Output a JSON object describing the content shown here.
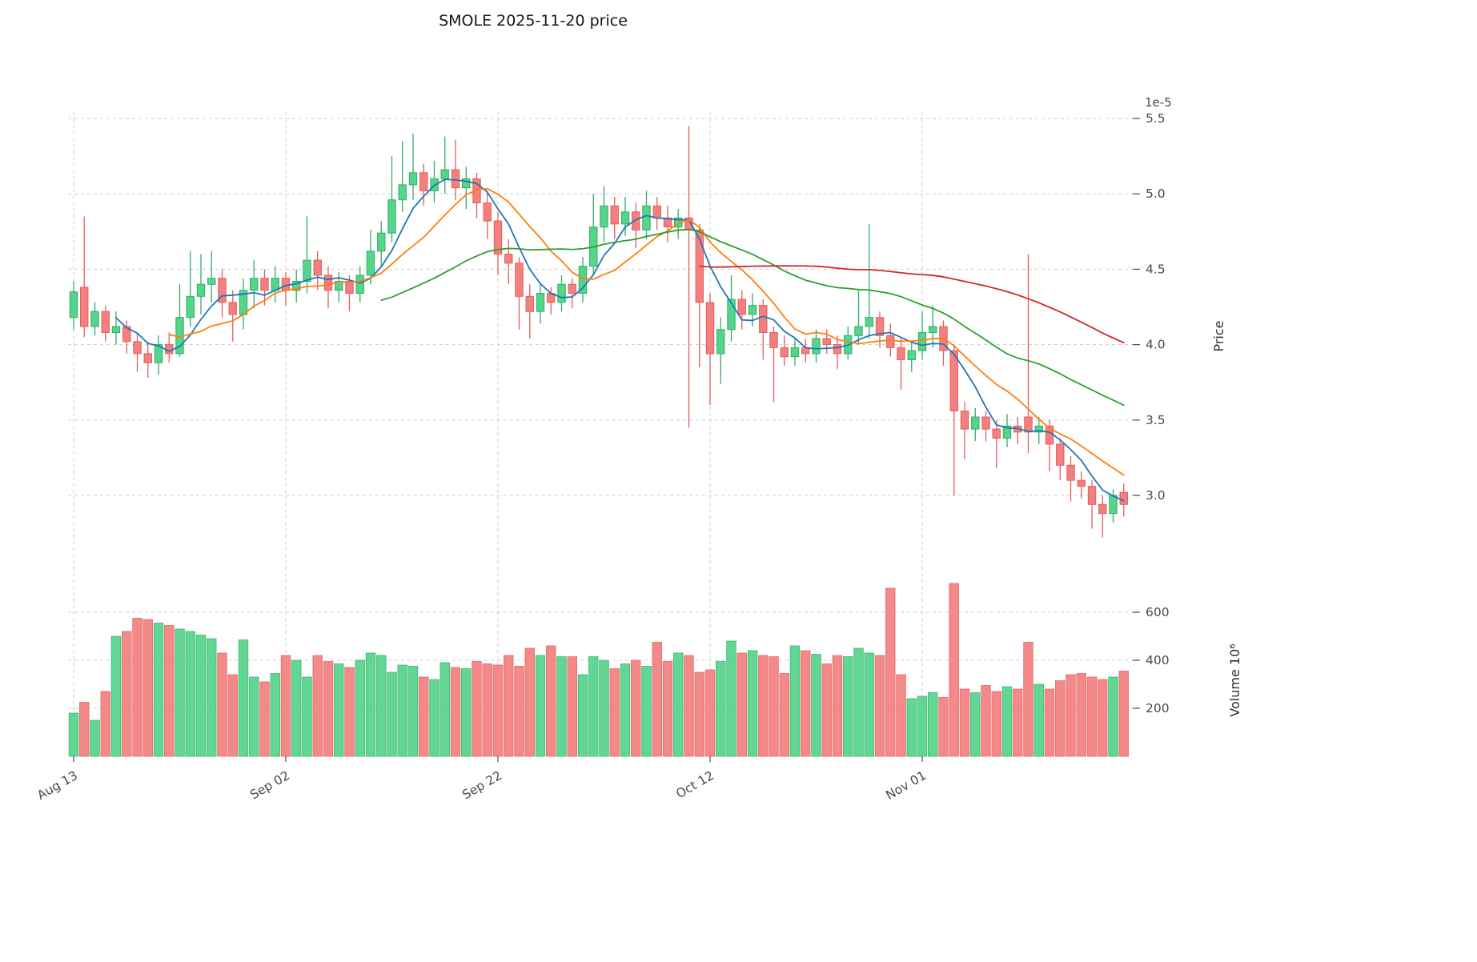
{
  "chart_data": {
    "type": "candlestick",
    "title": "SMOLE  2025-11-20  price",
    "grid": true,
    "legend_position": "none",
    "price_axis": {
      "label": "Price",
      "offset_label": "1e-5",
      "side": "right",
      "ticks": [
        3.0,
        3.5,
        4.0,
        4.5,
        5.0,
        5.5
      ],
      "ylim": [
        2.65,
        5.55
      ]
    },
    "volume_axis": {
      "label": "Volume  10⁶",
      "side": "right",
      "ticks": [
        200,
        400,
        600
      ],
      "ylim": [
        0,
        780
      ]
    },
    "x_ticks": [
      {
        "index": 0,
        "label": "Aug 13"
      },
      {
        "index": 20,
        "label": "Sep 02"
      },
      {
        "index": 40,
        "label": "Sep 22"
      },
      {
        "index": 60,
        "label": "Oct 12"
      },
      {
        "index": 80,
        "label": "Nov 01"
      }
    ],
    "moving_averages": [
      {
        "period": 5,
        "color": "#1f77b4"
      },
      {
        "period": 10,
        "color": "#ff7f0e"
      },
      {
        "period": 30,
        "color": "#2ca02c"
      },
      {
        "period": 60,
        "color": "#d62728"
      }
    ],
    "colors": {
      "up_fill": "#55d48c",
      "up_edge": "#2fae66",
      "down_fill": "#f3807f",
      "down_edge": "#e25d5e",
      "grid": "#cdcdcd"
    },
    "ohlcv_columns": [
      "open",
      "high",
      "low",
      "close",
      "volume_millions"
    ],
    "ohlcv": [
      [
        4.18,
        4.42,
        4.1,
        4.35,
        180
      ],
      [
        4.38,
        4.85,
        4.05,
        4.12,
        225
      ],
      [
        4.12,
        4.28,
        4.06,
        4.22,
        150
      ],
      [
        4.22,
        4.26,
        4.02,
        4.08,
        270
      ],
      [
        4.08,
        4.22,
        4.0,
        4.12,
        500
      ],
      [
        4.12,
        4.16,
        3.94,
        4.02,
        520
      ],
      [
        4.02,
        4.08,
        3.82,
        3.94,
        575
      ],
      [
        3.94,
        4.02,
        3.78,
        3.88,
        570
      ],
      [
        3.88,
        4.06,
        3.8,
        4.0,
        555
      ],
      [
        4.0,
        4.08,
        3.88,
        3.94,
        545
      ],
      [
        3.94,
        4.4,
        3.92,
        4.18,
        530
      ],
      [
        4.18,
        4.62,
        4.12,
        4.32,
        520
      ],
      [
        4.32,
        4.6,
        4.2,
        4.4,
        505
      ],
      [
        4.4,
        4.62,
        4.28,
        4.44,
        490
      ],
      [
        4.44,
        4.5,
        4.18,
        4.28,
        430
      ],
      [
        4.28,
        4.36,
        4.02,
        4.2,
        340
      ],
      [
        4.2,
        4.44,
        4.1,
        4.36,
        485
      ],
      [
        4.36,
        4.56,
        4.24,
        4.44,
        330
      ],
      [
        4.44,
        4.5,
        4.26,
        4.36,
        310
      ],
      [
        4.36,
        4.52,
        4.28,
        4.44,
        345
      ],
      [
        4.44,
        4.48,
        4.26,
        4.36,
        420
      ],
      [
        4.36,
        4.5,
        4.28,
        4.42,
        400
      ],
      [
        4.42,
        4.85,
        4.34,
        4.56,
        330
      ],
      [
        4.56,
        4.62,
        4.36,
        4.46,
        420
      ],
      [
        4.46,
        4.52,
        4.24,
        4.36,
        395
      ],
      [
        4.36,
        4.48,
        4.28,
        4.42,
        385
      ],
      [
        4.42,
        4.46,
        4.22,
        4.34,
        370
      ],
      [
        4.34,
        4.52,
        4.28,
        4.46,
        400
      ],
      [
        4.46,
        4.76,
        4.4,
        4.62,
        430
      ],
      [
        4.62,
        4.82,
        4.52,
        4.74,
        420
      ],
      [
        4.74,
        5.25,
        4.68,
        4.96,
        350
      ],
      [
        4.96,
        5.35,
        4.88,
        5.06,
        380
      ],
      [
        5.06,
        5.4,
        4.96,
        5.14,
        375
      ],
      [
        5.14,
        5.2,
        4.92,
        5.02,
        330
      ],
      [
        5.02,
        5.22,
        4.94,
        5.1,
        320
      ],
      [
        5.1,
        5.38,
        5.0,
        5.16,
        390
      ],
      [
        5.16,
        5.36,
        4.96,
        5.04,
        370
      ],
      [
        5.04,
        5.18,
        4.9,
        5.1,
        365
      ],
      [
        5.1,
        5.14,
        4.84,
        4.94,
        395
      ],
      [
        4.94,
        5.02,
        4.7,
        4.82,
        385
      ],
      [
        4.82,
        4.88,
        4.46,
        4.6,
        380
      ],
      [
        4.6,
        4.7,
        4.4,
        4.54,
        420
      ],
      [
        4.54,
        4.58,
        4.1,
        4.32,
        375
      ],
      [
        4.32,
        4.4,
        4.04,
        4.22,
        450
      ],
      [
        4.22,
        4.4,
        4.14,
        4.34,
        420
      ],
      [
        4.34,
        4.38,
        4.2,
        4.28,
        460
      ],
      [
        4.28,
        4.46,
        4.22,
        4.4,
        415
      ],
      [
        4.4,
        4.44,
        4.24,
        4.34,
        415
      ],
      [
        4.34,
        4.58,
        4.28,
        4.52,
        340
      ],
      [
        4.52,
        5.0,
        4.46,
        4.78,
        415
      ],
      [
        4.78,
        5.05,
        4.68,
        4.92,
        400
      ],
      [
        4.92,
        4.98,
        4.7,
        4.8,
        365
      ],
      [
        4.8,
        4.98,
        4.72,
        4.88,
        385
      ],
      [
        4.88,
        4.94,
        4.64,
        4.76,
        400
      ],
      [
        4.76,
        5.02,
        4.7,
        4.92,
        375
      ],
      [
        4.92,
        4.98,
        4.76,
        4.84,
        475
      ],
      [
        4.84,
        4.92,
        4.68,
        4.78,
        395
      ],
      [
        4.78,
        4.9,
        4.7,
        4.84,
        430
      ],
      [
        4.84,
        5.45,
        3.45,
        4.76,
        420
      ],
      [
        4.76,
        4.8,
        3.85,
        4.28,
        350
      ],
      [
        4.28,
        4.34,
        3.6,
        3.94,
        360
      ],
      [
        3.94,
        4.18,
        3.74,
        4.1,
        395
      ],
      [
        4.1,
        4.46,
        4.02,
        4.3,
        480
      ],
      [
        4.3,
        4.36,
        4.1,
        4.2,
        430
      ],
      [
        4.2,
        4.34,
        4.12,
        4.26,
        440
      ],
      [
        4.26,
        4.3,
        3.9,
        4.08,
        420
      ],
      [
        4.08,
        4.12,
        3.62,
        3.98,
        415
      ],
      [
        3.98,
        4.06,
        3.86,
        3.92,
        345
      ],
      [
        3.92,
        4.04,
        3.86,
        3.98,
        460
      ],
      [
        3.98,
        4.04,
        3.88,
        3.94,
        440
      ],
      [
        3.94,
        4.1,
        3.88,
        4.04,
        425
      ],
      [
        4.04,
        4.1,
        3.94,
        4.0,
        385
      ],
      [
        4.0,
        4.06,
        3.84,
        3.94,
        420
      ],
      [
        3.94,
        4.12,
        3.9,
        4.06,
        415
      ],
      [
        4.06,
        4.36,
        4.0,
        4.12,
        450
      ],
      [
        4.12,
        4.8,
        4.04,
        4.18,
        430
      ],
      [
        4.18,
        4.22,
        3.98,
        4.06,
        420
      ],
      [
        4.06,
        4.14,
        3.92,
        3.98,
        700
      ],
      [
        3.98,
        4.04,
        3.7,
        3.9,
        340
      ],
      [
        3.9,
        4.02,
        3.82,
        3.96,
        240
      ],
      [
        3.96,
        4.22,
        3.9,
        4.08,
        250
      ],
      [
        4.08,
        4.26,
        3.98,
        4.12,
        265
      ],
      [
        4.12,
        4.16,
        3.86,
        3.96,
        245
      ],
      [
        3.96,
        4.0,
        3.0,
        3.56,
        720
      ],
      [
        3.56,
        3.62,
        3.24,
        3.44,
        280
      ],
      [
        3.44,
        3.58,
        3.36,
        3.52,
        265
      ],
      [
        3.52,
        3.56,
        3.36,
        3.44,
        295
      ],
      [
        3.44,
        3.5,
        3.18,
        3.38,
        270
      ],
      [
        3.38,
        3.54,
        3.32,
        3.46,
        290
      ],
      [
        3.46,
        3.52,
        3.34,
        3.42,
        280
      ],
      [
        3.52,
        4.6,
        3.28,
        3.42,
        475
      ],
      [
        3.42,
        3.52,
        3.34,
        3.46,
        300
      ],
      [
        3.46,
        3.5,
        3.16,
        3.34,
        280
      ],
      [
        3.34,
        3.38,
        3.1,
        3.2,
        315
      ],
      [
        3.2,
        3.26,
        2.96,
        3.1,
        340
      ],
      [
        3.1,
        3.16,
        2.98,
        3.06,
        345
      ],
      [
        3.06,
        3.1,
        2.78,
        2.94,
        330
      ],
      [
        2.94,
        3.0,
        2.72,
        2.88,
        320
      ],
      [
        2.88,
        3.04,
        2.82,
        3.0,
        330
      ],
      [
        3.02,
        3.08,
        2.86,
        2.94,
        355
      ]
    ]
  }
}
